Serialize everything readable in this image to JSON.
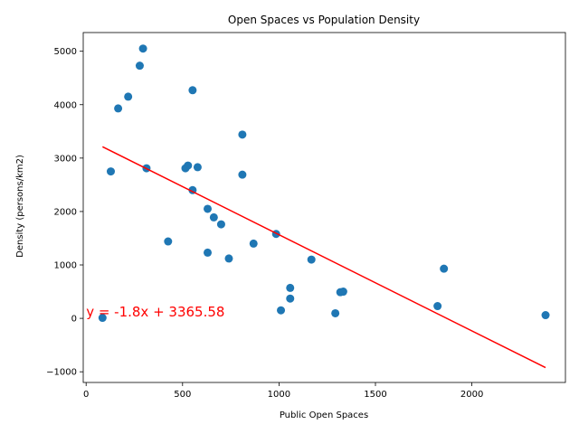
{
  "chart_data": {
    "type": "scatter",
    "title": "Open Spaces vs Population Density",
    "xlabel": "Public Open Spaces",
    "ylabel": "Density (persons/km2)",
    "xlim": [
      -15,
      2485
    ],
    "ylim": [
      -1200,
      5350
    ],
    "xticks": [
      0,
      500,
      1000,
      1500,
      2000
    ],
    "yticks": [
      -1000,
      0,
      1000,
      2000,
      3000,
      4000,
      5000
    ],
    "grid": false,
    "colors": {
      "points": "#1f77b4",
      "fit_line": "#ff0000",
      "annotation": "#ff0000"
    },
    "series": [
      {
        "points": [
          {
            "x": 295,
            "y": 5050
          },
          {
            "x": 278,
            "y": 4730
          },
          {
            "x": 552,
            "y": 4270
          },
          {
            "x": 218,
            "y": 4150
          },
          {
            "x": 166,
            "y": 3930
          },
          {
            "x": 810,
            "y": 3440
          },
          {
            "x": 128,
            "y": 2750
          },
          {
            "x": 313,
            "y": 2810
          },
          {
            "x": 515,
            "y": 2810
          },
          {
            "x": 528,
            "y": 2860
          },
          {
            "x": 578,
            "y": 2830
          },
          {
            "x": 810,
            "y": 2690
          },
          {
            "x": 552,
            "y": 2400
          },
          {
            "x": 630,
            "y": 2050
          },
          {
            "x": 662,
            "y": 1890
          },
          {
            "x": 700,
            "y": 1760
          },
          {
            "x": 985,
            "y": 1580
          },
          {
            "x": 425,
            "y": 1440
          },
          {
            "x": 868,
            "y": 1400
          },
          {
            "x": 630,
            "y": 1230
          },
          {
            "x": 740,
            "y": 1120
          },
          {
            "x": 1168,
            "y": 1100
          },
          {
            "x": 1855,
            "y": 930
          },
          {
            "x": 1058,
            "y": 570
          },
          {
            "x": 1318,
            "y": 490
          },
          {
            "x": 1333,
            "y": 500
          },
          {
            "x": 1058,
            "y": 370
          },
          {
            "x": 1822,
            "y": 230
          },
          {
            "x": 1010,
            "y": 150
          },
          {
            "x": 1292,
            "y": 95
          },
          {
            "x": 85,
            "y": 10
          },
          {
            "x": 2382,
            "y": 60
          }
        ]
      }
    ],
    "fit": {
      "slope": -1.8,
      "intercept": 3365.58,
      "x_range": [
        85,
        2382
      ]
    },
    "annotation": {
      "text": "y = -1.8x + 3365.58",
      "x": 0,
      "y": 0
    }
  }
}
